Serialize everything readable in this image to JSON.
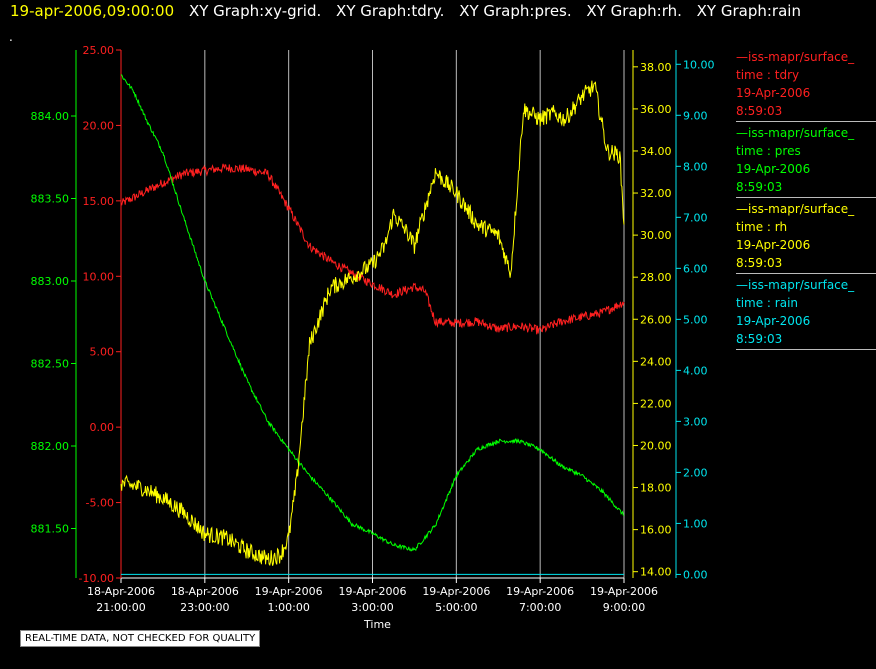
{
  "header": {
    "datetime": "19-apr-2006,09:00:00",
    "graphs": [
      "XY Graph:xy-grid.",
      "XY Graph:tdry.",
      "XY Graph:pres.",
      "XY Graph:rh.",
      "XY Graph:rain"
    ]
  },
  "dot": ".",
  "notice": "REAL-TIME DATA, NOT CHECKED FOR QUALITY",
  "legend": [
    {
      "name": "—iss-mapr/surface_",
      "var": "time : tdry",
      "date": "19-Apr-2006",
      "time": "8:59:03",
      "color": "#ff2020"
    },
    {
      "name": "—iss-mapr/surface_",
      "var": "time : pres",
      "date": "19-Apr-2006",
      "time": "8:59:03",
      "color": "#00ff00"
    },
    {
      "name": "—iss-mapr/surface_",
      "var": "time : rh",
      "date": "19-Apr-2006",
      "time": "8:59:03",
      "color": "#ffff00"
    },
    {
      "name": "—iss-mapr/surface_",
      "var": "time : rain",
      "date": "19-Apr-2006",
      "time": "8:59:03",
      "color": "#00e5ee"
    }
  ],
  "chart_data": {
    "type": "line",
    "xlabel": "Time",
    "x_ticks": [
      {
        "d": "18-Apr-2006",
        "t": "21:00:00"
      },
      {
        "d": "18-Apr-2006",
        "t": "23:00:00"
      },
      {
        "d": "19-Apr-2006",
        "t": "1:00:00"
      },
      {
        "d": "19-Apr-2006",
        "t": "3:00:00"
      },
      {
        "d": "19-Apr-2006",
        "t": "5:00:00"
      },
      {
        "d": "19-Apr-2006",
        "t": "7:00:00"
      },
      {
        "d": "19-Apr-2006",
        "t": "9:00:00"
      }
    ],
    "x_range": [
      "18-Apr-2006 21:00:00",
      "19-Apr-2006 09:00:00"
    ],
    "grid": "vertical",
    "axes": {
      "tdry": {
        "color": "#ff2020",
        "ylim": [
          -10,
          25
        ],
        "ticks": [
          "-10.00",
          "-5.00",
          "0.00",
          "5.00",
          "10.00",
          "15.00",
          "20.00",
          "25.00"
        ]
      },
      "pres": {
        "color": "#00ff00",
        "ylim": [
          881.2,
          884.4
        ],
        "ticks": [
          "881.50",
          "882.00",
          "882.50",
          "883.00",
          "883.50",
          "884.00"
        ]
      },
      "rh": {
        "color": "#ffff00",
        "ylim": [
          13.7,
          38.8
        ],
        "ticks": [
          "14.00",
          "16.00",
          "18.00",
          "20.00",
          "22.00",
          "24.00",
          "26.00",
          "28.00",
          "30.00",
          "32.00",
          "34.00",
          "36.00",
          "38.00"
        ]
      },
      "rain": {
        "color": "#00e5ee",
        "ylim": [
          -0.07,
          10.28
        ],
        "ticks": [
          "0.00",
          "1.00",
          "2.00",
          "3.00",
          "4.00",
          "5.00",
          "6.00",
          "7.00",
          "8.00",
          "9.00",
          "10.00"
        ]
      }
    },
    "series": [
      {
        "axis": "tdry",
        "color": "#ff2020",
        "noise": 0.3,
        "x": [
          0,
          0.5,
          1,
          1.5,
          2,
          2.5,
          3,
          3.5,
          4,
          4.5,
          5,
          5.5,
          6,
          6.5,
          7,
          7.25,
          7.5,
          8,
          8.5,
          9,
          9.5,
          10,
          10.5,
          11,
          11.5,
          12
        ],
        "y": [
          14.8,
          15.5,
          16.2,
          16.8,
          17.0,
          17.2,
          17.1,
          16.8,
          14.5,
          12.0,
          11.0,
          10.2,
          9.5,
          8.8,
          9.3,
          9.0,
          7.0,
          6.9,
          7.0,
          6.5,
          6.7,
          6.4,
          7.0,
          7.3,
          7.6,
          8.3
        ]
      },
      {
        "axis": "pres",
        "color": "#00ff00",
        "noise": 0.012,
        "x": [
          0,
          0.3,
          0.6,
          1,
          1.5,
          2,
          2.5,
          3,
          3.5,
          4,
          4.5,
          5,
          5.5,
          6,
          6.5,
          7,
          7.5,
          8,
          8.5,
          9,
          9.5,
          10,
          10.5,
          11,
          11.5,
          12
        ],
        "y": [
          884.25,
          884.15,
          883.98,
          883.78,
          883.38,
          883.0,
          882.7,
          882.4,
          882.15,
          881.98,
          881.82,
          881.68,
          881.53,
          881.47,
          881.4,
          881.37,
          881.52,
          881.82,
          881.98,
          882.03,
          882.03,
          881.98,
          881.88,
          881.82,
          881.72,
          881.58
        ]
      },
      {
        "axis": "rh",
        "color": "#ffff00",
        "noise": 0.4,
        "x": [
          0,
          0.5,
          1,
          1.5,
          2,
          2.5,
          3,
          3.5,
          3.8,
          4,
          4.2,
          4.5,
          5,
          5.5,
          6,
          6.3,
          6.5,
          6.8,
          7,
          7.5,
          8,
          8.5,
          9,
          9.3,
          9.6,
          10,
          10.3,
          10.6,
          11,
          11.3,
          11.6,
          11.9,
          12
        ],
        "y": [
          18.2,
          18.0,
          17.5,
          16.8,
          15.8,
          15.6,
          15.0,
          14.6,
          14.8,
          15.6,
          18.5,
          24.8,
          27.5,
          28.0,
          28.6,
          29.5,
          31.0,
          30.2,
          29.5,
          33.0,
          32.0,
          30.5,
          30.0,
          28.2,
          36.0,
          35.5,
          35.8,
          35.5,
          36.6,
          37.1,
          34.0,
          33.8,
          30.5
        ]
      },
      {
        "axis": "rain",
        "color": "#00e5ee",
        "noise": 0,
        "x": [
          0,
          12
        ],
        "y": [
          0.0,
          0.0
        ]
      }
    ]
  }
}
